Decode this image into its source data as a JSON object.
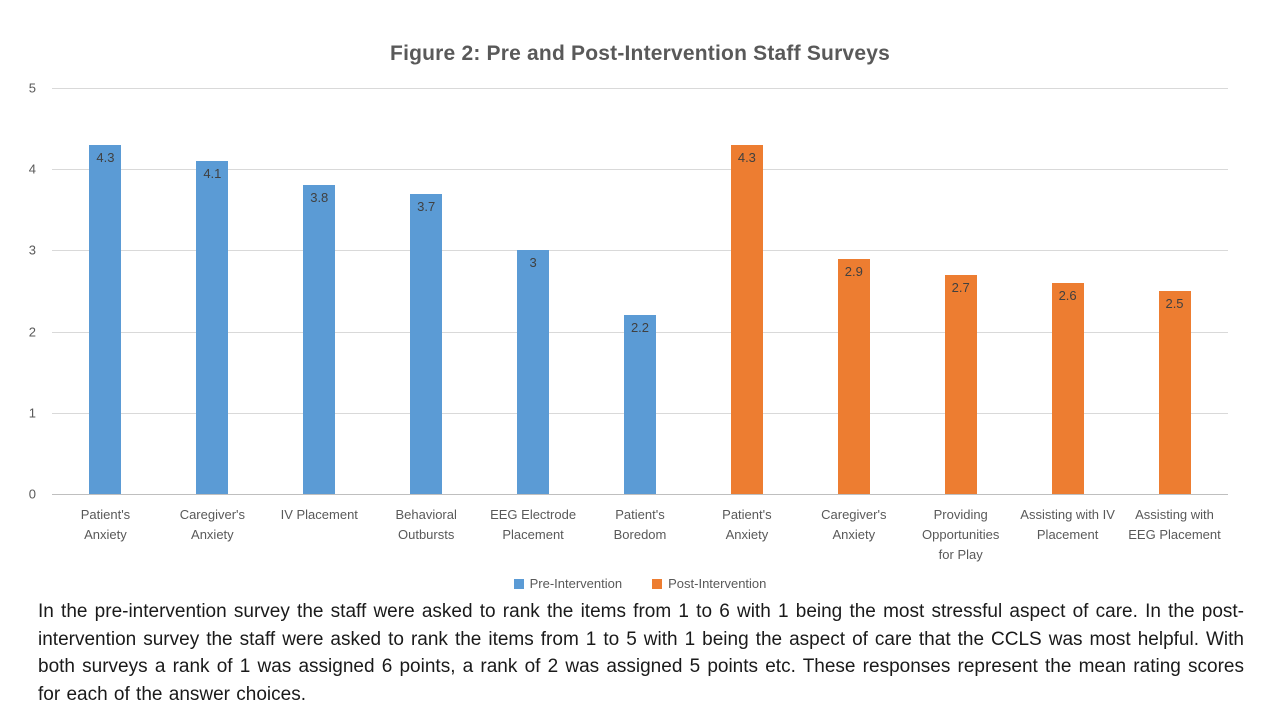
{
  "chart_data": {
    "type": "bar",
    "title": "Figure 2: Pre and Post-Intervention Staff Surveys",
    "ylim": [
      0,
      5
    ],
    "yticks": [
      "0",
      "1",
      "2",
      "3",
      "4",
      "5"
    ],
    "grid": true,
    "legend_position": "bottom",
    "value_labels_position": "inside-end",
    "colors": {
      "pre_intervention": "#5B9BD5",
      "post_intervention": "#ED7D31",
      "gridline": "#D9D9D9",
      "axis_line": "#BFBFBF",
      "title_text": "#595959",
      "axis_text": "#595959",
      "value_label_text": "#404040"
    },
    "series": [
      {
        "name": "Pre-Intervention",
        "color": "#5B9BD5",
        "categories": [
          "Patient's Anxiety",
          "Caregiver's Anxiety",
          "IV Placement",
          "Behavioral Outbursts",
          "EEG Electrode Placement",
          "Patient's Boredom"
        ],
        "category_wraps": [
          [
            "Patient's",
            "Anxiety"
          ],
          [
            "Caregiver's",
            "Anxiety"
          ],
          [
            "IV Placement"
          ],
          [
            "Behavioral",
            "Outbursts"
          ],
          [
            "EEG Electrode",
            "Placement"
          ],
          [
            "Patient's",
            "Boredom"
          ]
        ],
        "values": [
          4.3,
          4.1,
          3.8,
          3.7,
          3,
          2.2
        ],
        "value_labels": [
          "4.3",
          "4.1",
          "3.8",
          "3.7",
          "3",
          "2.2"
        ]
      },
      {
        "name": "Post-Intervention",
        "color": "#ED7D31",
        "categories": [
          "Patient's Anxiety",
          "Caregiver's Anxiety",
          "Providing Opportunities for Play",
          "Assisting with IV Placement",
          "Assisting with EEG Placement"
        ],
        "category_wraps": [
          [
            "Patient's",
            "Anxiety"
          ],
          [
            "Caregiver's",
            "Anxiety"
          ],
          [
            "Providing",
            "Opportunities",
            "for Play"
          ],
          [
            "Assisting with IV",
            "Placement"
          ],
          [
            "Assisting with",
            "EEG Placement"
          ]
        ],
        "values": [
          4.3,
          2.9,
          2.7,
          2.6,
          2.5
        ],
        "value_labels": [
          "4.3",
          "2.9",
          "2.7",
          "2.6",
          "2.5"
        ]
      }
    ]
  },
  "legend": {
    "items": [
      {
        "label": "Pre-Intervention",
        "color": "#5B9BD5"
      },
      {
        "label": "Post-Intervention",
        "color": "#ED7D31"
      }
    ]
  },
  "caption": "In the pre-intervention survey the staff were asked to rank the items from 1 to 6 with 1 being the most stressful aspect of care. In the post-intervention survey the staff were asked to rank the items from 1 to 5 with 1 being the aspect of care that the CCLS was most helpful. With both surveys a rank of 1 was assigned 6 points, a rank of 2 was assigned 5 points etc. These responses represent the mean rating scores for each of the answer choices."
}
